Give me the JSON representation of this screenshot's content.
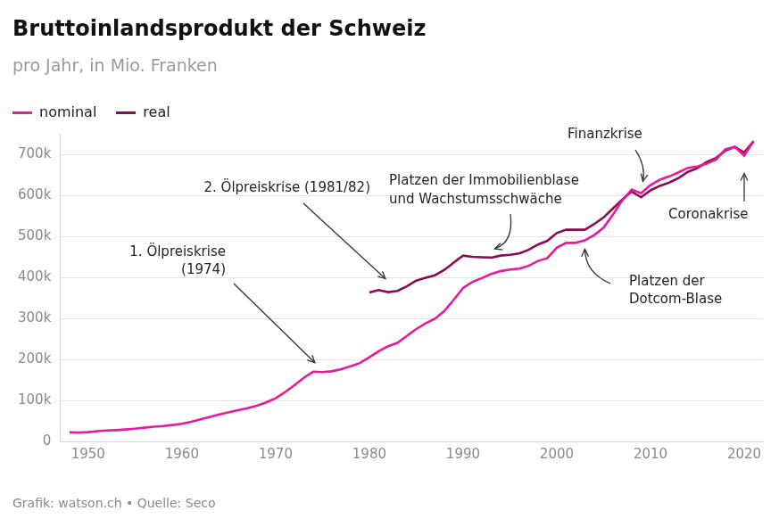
{
  "chart_data": {
    "type": "line",
    "title": "Bruttoinlandsprodukt der Schweiz",
    "subtitle": "pro Jahr, in Mio. Franken",
    "source": "Grafik: watson.ch • Quelle: Seco",
    "legend": "top-left",
    "grid": true,
    "x": [
      1948,
      1949,
      1950,
      1951,
      1952,
      1953,
      1954,
      1955,
      1956,
      1957,
      1958,
      1959,
      1960,
      1961,
      1962,
      1963,
      1964,
      1965,
      1966,
      1967,
      1968,
      1969,
      1970,
      1971,
      1972,
      1973,
      1974,
      1975,
      1976,
      1977,
      1978,
      1979,
      1980,
      1981,
      1982,
      1983,
      1984,
      1985,
      1986,
      1987,
      1988,
      1989,
      1990,
      1991,
      1992,
      1993,
      1994,
      1995,
      1996,
      1997,
      1998,
      1999,
      2000,
      2001,
      2002,
      2003,
      2004,
      2005,
      2006,
      2007,
      2008,
      2009,
      2010,
      2011,
      2012,
      2013,
      2014,
      2015,
      2016,
      2017,
      2018,
      2019,
      2020,
      2021
    ],
    "series": [
      {
        "name": "nominal",
        "color": "#e8199c",
        "values": [
          22000,
          21500,
          22500,
          25000,
          26500,
          27500,
          29000,
          31000,
          33500,
          36000,
          37500,
          40000,
          43000,
          48000,
          54000,
          60000,
          66000,
          71000,
          76000,
          81000,
          87000,
          95000,
          105000,
          120000,
          137000,
          155000,
          170000,
          169000,
          171000,
          176000,
          183000,
          191000,
          205000,
          220000,
          232000,
          240000,
          257000,
          274000,
          288000,
          299000,
          318000,
          345000,
          374000,
          389000,
          398000,
          408000,
          415000,
          419000,
          421000,
          428000,
          440000,
          447000,
          472000,
          484000,
          484000,
          490000,
          503000,
          521000,
          553000,
          588000,
          614000,
          605000,
          625000,
          638000,
          646000,
          656000,
          667000,
          670000,
          677000,
          687000,
          712000,
          718000,
          697000,
          732000
        ]
      },
      {
        "name": "real",
        "color": "#8c0b52",
        "values": [
          null,
          null,
          null,
          null,
          null,
          null,
          null,
          null,
          null,
          null,
          null,
          null,
          null,
          null,
          null,
          null,
          null,
          null,
          null,
          null,
          null,
          null,
          null,
          null,
          null,
          null,
          null,
          null,
          null,
          null,
          null,
          null,
          363000,
          369000,
          364000,
          367000,
          378000,
          392000,
          399000,
          405000,
          418000,
          436000,
          453000,
          450000,
          449000,
          448000,
          453000,
          455000,
          458000,
          467000,
          480000,
          489000,
          508000,
          516000,
          516000,
          516000,
          530000,
          546000,
          568000,
          590000,
          609000,
          595000,
          612000,
          623000,
          631000,
          642000,
          657000,
          666000,
          681000,
          691000,
          709000,
          718000,
          704000,
          732000
        ]
      }
    ],
    "xlim": [
      1947,
      2022
    ],
    "xticks": [
      1950,
      1960,
      1970,
      1980,
      1990,
      2000,
      2010,
      2020
    ],
    "ylim": [
      0,
      750000
    ],
    "yticks": [
      0,
      {
        "value": 100000,
        "label": "100k"
      },
      {
        "value": 200000,
        "label": "200k"
      },
      {
        "value": 300000,
        "label": "300k"
      },
      {
        "value": 400000,
        "label": "400k"
      },
      {
        "value": 500000,
        "label": "500k"
      },
      {
        "value": 600000,
        "label": "600k"
      },
      {
        "value": 700000,
        "label": "700k"
      }
    ],
    "annotations": [
      {
        "text": [
          "1. Ölpreiskrise",
          "(1974)"
        ],
        "x": 1974,
        "series": "nominal"
      },
      {
        "text": [
          "2. Ölpreiskrise (1981/82)"
        ],
        "x": 1982,
        "series": "real"
      },
      {
        "text": [
          "Platzen der Immobilienblase",
          "und Wachstumsschwäche"
        ],
        "x": 1993,
        "series": "real"
      },
      {
        "text": [
          "Finanzkrise"
        ],
        "x": 2009,
        "series": "real"
      },
      {
        "text": [
          "Platzen der",
          "Dotcom-Blase"
        ],
        "x": 2003,
        "series": "nominal"
      },
      {
        "text": [
          "Coronakrise"
        ],
        "x": 2020,
        "series": "nominal"
      }
    ]
  }
}
